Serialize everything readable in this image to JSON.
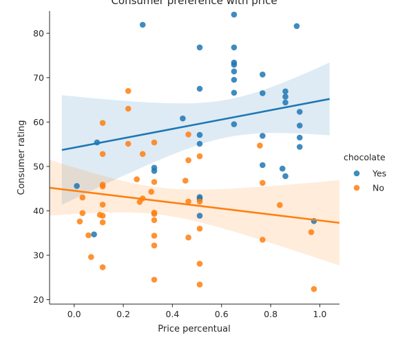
{
  "chart_data": {
    "type": "scatter",
    "title": "Consumer preference with price",
    "xlabel": "Price percentual",
    "ylabel": "Consumer rating",
    "xlim": [
      -0.1,
      1.08
    ],
    "ylim": [
      19,
      85
    ],
    "xticks": [
      0.0,
      0.2,
      0.4,
      0.6,
      0.8,
      1.0
    ],
    "xtick_labels": [
      "0.0",
      "0.2",
      "0.4",
      "0.6",
      "0.8",
      "1.0"
    ],
    "yticks": [
      20,
      30,
      40,
      50,
      60,
      70,
      80
    ],
    "ytick_labels": [
      "20",
      "30",
      "40",
      "50",
      "60",
      "70",
      "80"
    ],
    "grid": false,
    "legend": {
      "title": "chocolate",
      "placement": "right",
      "entries": [
        "Yes",
        "No"
      ]
    },
    "series": [
      {
        "name": "Yes",
        "color": "#1f77b4",
        "points": [
          [
            0.011,
            45.6
          ],
          [
            0.093,
            55.4
          ],
          [
            0.081,
            34.7
          ],
          [
            0.279,
            81.9
          ],
          [
            0.326,
            49.7
          ],
          [
            0.326,
            49.0
          ],
          [
            0.442,
            60.8
          ],
          [
            0.511,
            76.8
          ],
          [
            0.511,
            67.5
          ],
          [
            0.511,
            57.1
          ],
          [
            0.511,
            55.1
          ],
          [
            0.511,
            43.1
          ],
          [
            0.511,
            42.7
          ],
          [
            0.511,
            38.9
          ],
          [
            0.651,
            84.2
          ],
          [
            0.651,
            76.8
          ],
          [
            0.651,
            73.4
          ],
          [
            0.651,
            72.9
          ],
          [
            0.651,
            71.4
          ],
          [
            0.651,
            69.5
          ],
          [
            0.651,
            66.6
          ],
          [
            0.651,
            59.5
          ],
          [
            0.767,
            70.7
          ],
          [
            0.767,
            66.5
          ],
          [
            0.767,
            56.9
          ],
          [
            0.767,
            50.3
          ],
          [
            0.848,
            49.5
          ],
          [
            0.86,
            66.9
          ],
          [
            0.86,
            65.7
          ],
          [
            0.86,
            64.4
          ],
          [
            0.86,
            47.8
          ],
          [
            0.906,
            81.6
          ],
          [
            0.918,
            62.3
          ],
          [
            0.918,
            59.2
          ],
          [
            0.918,
            56.5
          ],
          [
            0.918,
            54.4
          ],
          [
            0.976,
            37.7
          ]
        ],
        "fit": {
          "x0": -0.05,
          "y0": 53.7,
          "x1": 1.04,
          "y1": 65.2
        }
      },
      {
        "name": "No",
        "color": "#ff7f0e",
        "points": [
          [
            0.023,
            37.6
          ],
          [
            0.034,
            43.0
          ],
          [
            0.034,
            39.5
          ],
          [
            0.058,
            34.5
          ],
          [
            0.069,
            29.6
          ],
          [
            0.105,
            39.1
          ],
          [
            0.116,
            59.8
          ],
          [
            0.116,
            52.8
          ],
          [
            0.116,
            45.9
          ],
          [
            0.116,
            45.5
          ],
          [
            0.116,
            41.4
          ],
          [
            0.116,
            38.9
          ],
          [
            0.116,
            37.4
          ],
          [
            0.116,
            27.3
          ],
          [
            0.22,
            67.0
          ],
          [
            0.22,
            63.0
          ],
          [
            0.22,
            55.1
          ],
          [
            0.255,
            47.1
          ],
          [
            0.267,
            42.0
          ],
          [
            0.279,
            52.8
          ],
          [
            0.279,
            42.8
          ],
          [
            0.314,
            44.3
          ],
          [
            0.326,
            55.4
          ],
          [
            0.326,
            46.5
          ],
          [
            0.326,
            39.6
          ],
          [
            0.326,
            39.3
          ],
          [
            0.326,
            37.9
          ],
          [
            0.326,
            34.4
          ],
          [
            0.326,
            32.2
          ],
          [
            0.326,
            24.5
          ],
          [
            0.453,
            46.8
          ],
          [
            0.465,
            57.2
          ],
          [
            0.465,
            51.4
          ],
          [
            0.465,
            42.1
          ],
          [
            0.465,
            34.0
          ],
          [
            0.511,
            52.3
          ],
          [
            0.511,
            42.1
          ],
          [
            0.511,
            36.0
          ],
          [
            0.511,
            28.1
          ],
          [
            0.511,
            23.4
          ],
          [
            0.756,
            54.7
          ],
          [
            0.767,
            46.3
          ],
          [
            0.767,
            33.5
          ],
          [
            0.837,
            41.3
          ],
          [
            0.965,
            35.2
          ],
          [
            0.976,
            22.4
          ]
        ],
        "fit": {
          "x0": -0.1,
          "y0": 45.2,
          "x1": 1.08,
          "y1": 37.3
        }
      }
    ]
  }
}
